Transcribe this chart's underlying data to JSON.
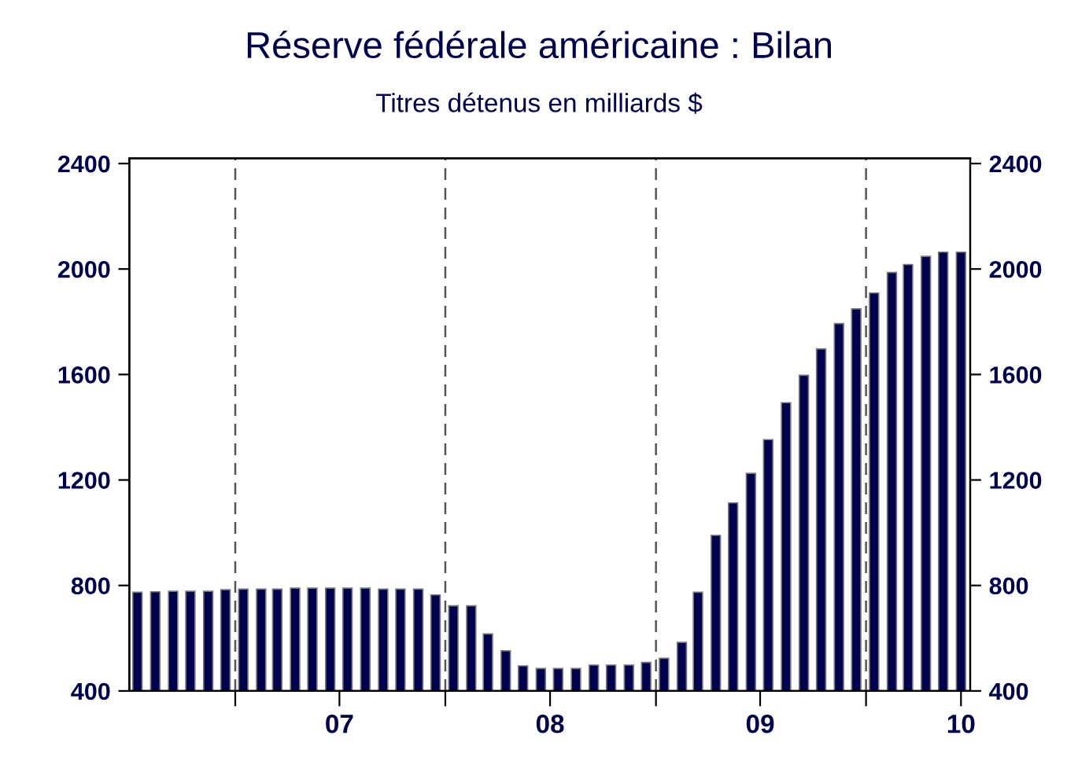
{
  "chart_data": {
    "type": "bar",
    "title": "Réserve fédérale américaine : Bilan",
    "subtitle": "Titres détenus en milliards $",
    "x": [
      "2006-07-15",
      "2006-08-15",
      "2006-09-15",
      "2006-10-15",
      "2006-11-15",
      "2006-12-15",
      "2007-01-15",
      "2007-02-15",
      "2007-03-15",
      "2007-04-15",
      "2007-05-15",
      "2007-06-15",
      "2007-07-15",
      "2007-08-15",
      "2007-09-15",
      "2007-10-15",
      "2007-11-15",
      "2007-12-15",
      "2008-01-15",
      "2008-02-15",
      "2008-03-15",
      "2008-04-15",
      "2008-05-15",
      "2008-06-15",
      "2008-07-15",
      "2008-08-15",
      "2008-09-15",
      "2008-10-15",
      "2008-11-15",
      "2008-12-15",
      "2009-01-15",
      "2009-02-15",
      "2009-03-15",
      "2009-04-15",
      "2009-05-15",
      "2009-06-15",
      "2009-07-15",
      "2009-08-15",
      "2009-09-15",
      "2009-10-15",
      "2009-11-15",
      "2009-12-15",
      "2010-01-15",
      "2010-02-15",
      "2010-03-15",
      "2010-04-15",
      "2010-05-15",
      "2010-06-15"
    ],
    "values": [
      774,
      776,
      778,
      778,
      778,
      784,
      786,
      786,
      786,
      790,
      790,
      790,
      790,
      790,
      786,
      786,
      786,
      764,
      723,
      723,
      616,
      552,
      495,
      485,
      485,
      485,
      498,
      498,
      498,
      508,
      524,
      584,
      774,
      990,
      1113,
      1225,
      1353,
      1493,
      1597,
      1697,
      1793,
      1849,
      1909,
      1987,
      2017,
      2048,
      2064,
      2064
    ],
    "color": "#000050",
    "xlim": [
      "2006-07-01",
      "2010-07-01"
    ],
    "xticks": [
      {
        "value": "2007-01-01",
        "label": null
      },
      {
        "value": "2007-07-01",
        "label": "07"
      },
      {
        "value": "2008-01-01",
        "label": null
      },
      {
        "value": "2008-07-01",
        "label": "08"
      },
      {
        "value": "2009-01-01",
        "label": null
      },
      {
        "value": "2009-07-01",
        "label": "09"
      },
      {
        "value": "2010-01-01",
        "label": null
      },
      {
        "value": "2010-06-15",
        "label": "10"
      }
    ],
    "ylim": [
      400,
      2420
    ],
    "yticks": [
      400,
      800,
      1200,
      1600,
      2000,
      2400
    ],
    "y2lim": [
      400,
      2420
    ],
    "y2ticks": [
      400,
      800,
      1200,
      1600,
      2000,
      2400
    ],
    "ref_lines": [
      {
        "axis": "x",
        "value": "2007-01-01",
        "color": "#555555",
        "line_style": "dashed"
      },
      {
        "axis": "x",
        "value": "2008-01-01",
        "color": "#555555",
        "line_style": "dashed"
      },
      {
        "axis": "x",
        "value": "2009-01-01",
        "color": "#555555",
        "line_style": "dashed"
      },
      {
        "axis": "x",
        "value": "2010-01-01",
        "color": "#555555",
        "line_style": "dashed"
      }
    ],
    "grid": false,
    "legend": false
  }
}
